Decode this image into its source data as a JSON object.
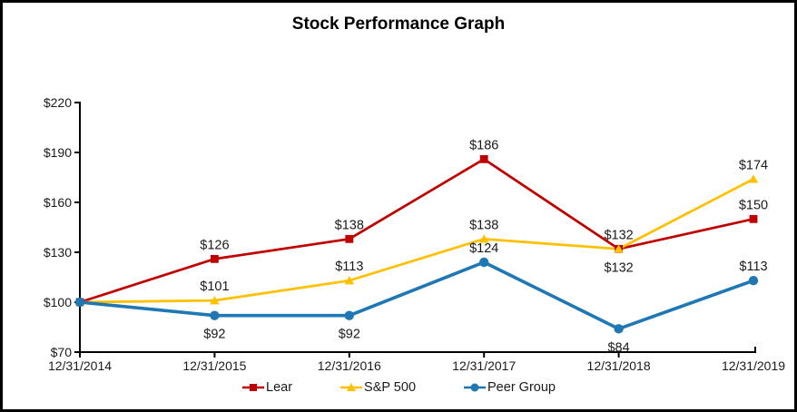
{
  "chart_data": {
    "type": "line",
    "title": "Stock Performance Graph",
    "categories": [
      "12/31/2014",
      "12/31/2015",
      "12/31/2016",
      "12/31/2017",
      "12/31/2018",
      "12/31/2019"
    ],
    "xlabel": "",
    "ylabel": "",
    "ylim": [
      70,
      220
    ],
    "ytick_step": 30,
    "ytick_prefix": "$",
    "ytick_labels": [
      "$70",
      "$100",
      "$130",
      "$160",
      "$190",
      "$220"
    ],
    "grid": false,
    "legend_position": "bottom-center",
    "axis_color": "#000000",
    "label_color": "#1a1a1a",
    "series": [
      {
        "name": "Lear",
        "color": "#C00000",
        "marker": "square",
        "line_width": 2.75,
        "values": [
          100,
          126,
          138,
          186,
          132,
          150
        ],
        "data_labels": [
          "",
          "$126",
          "$138",
          "$186",
          "$132",
          "$150"
        ],
        "label_positions": [
          "none",
          "above",
          "above",
          "above",
          "above",
          "above"
        ]
      },
      {
        "name": "S&P 500",
        "color": "#FFC000",
        "marker": "triangle",
        "line_width": 2.75,
        "values": [
          100,
          101,
          113,
          138,
          132,
          174
        ],
        "data_labels": [
          "",
          "$101",
          "$113",
          "$138",
          "$132",
          "$174"
        ],
        "label_positions": [
          "none",
          "above",
          "above",
          "above",
          "below",
          "above"
        ]
      },
      {
        "name": "Peer Group",
        "color": "#1F77B4",
        "marker": "circle",
        "line_width": 3.6,
        "values": [
          100,
          92,
          92,
          124,
          84,
          113
        ],
        "data_labels": [
          "",
          "$92",
          "$92",
          "$124",
          "$84",
          "$113"
        ],
        "label_positions": [
          "none",
          "below",
          "below",
          "above",
          "below",
          "above"
        ]
      }
    ]
  }
}
